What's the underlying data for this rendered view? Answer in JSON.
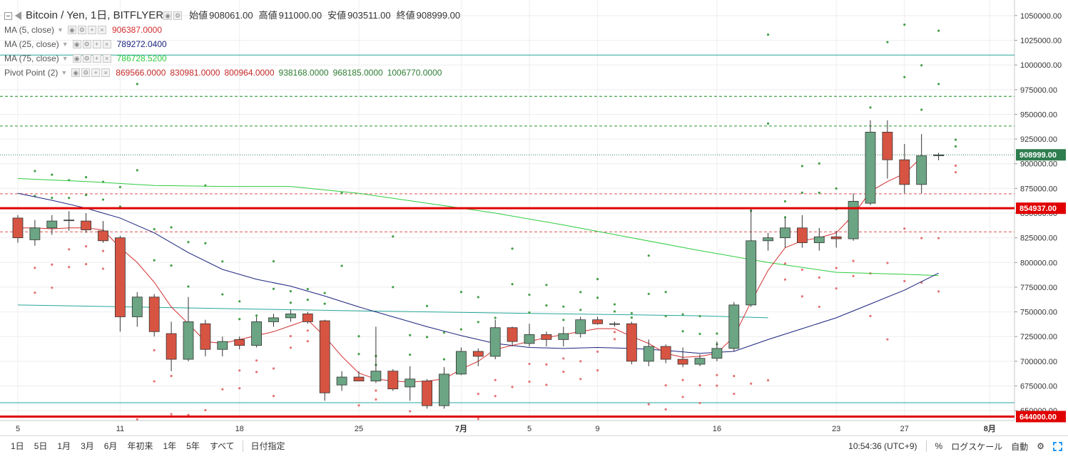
{
  "header": {
    "symbol": "Bitcoin / Yen, 1日, BITFLYER",
    "open_label": "始値",
    "open": "908061.00",
    "high_label": "高値",
    "high": "911000.00",
    "low_label": "安値",
    "low": "903511.00",
    "close_label": "終値",
    "close": "908999.00"
  },
  "indicators": [
    {
      "name": "MA (5, close)",
      "values": [
        "906387.0000"
      ],
      "colors": [
        "#d32f2f"
      ]
    },
    {
      "name": "MA (25, close)",
      "values": [
        "789272.0400"
      ],
      "colors": [
        "#1a237e"
      ]
    },
    {
      "name": "MA (75, close)",
      "values": [
        "786728.5200"
      ],
      "colors": [
        "#2ecc40"
      ]
    },
    {
      "name": "Pivot Point (2)",
      "values": [
        "869566.0000",
        "830981.0000",
        "800964.0000",
        "938168.0000",
        "968185.0000",
        "1006770.0000"
      ],
      "colors": [
        "#c62828",
        "#c62828",
        "#c62828",
        "#2e7d32",
        "#2e7d32",
        "#2e7d32"
      ]
    }
  ],
  "price_axis": {
    "labels": [
      "1050000.00",
      "1025000.00",
      "1000000.00",
      "975000.00",
      "950000.00",
      "925000.00",
      "900000.00",
      "875000.00",
      "850000.00",
      "825000.00",
      "800000.00",
      "775000.00",
      "750000.00",
      "725000.00",
      "700000.00",
      "675000.00",
      "650000.00"
    ],
    "current_price": "908999.00",
    "level_1": "854937.00",
    "level_2": "644000.00"
  },
  "time_axis": {
    "labels": [
      {
        "text": "5",
        "i": 0
      },
      {
        "text": "11",
        "i": 6
      },
      {
        "text": "18",
        "i": 13
      },
      {
        "text": "25",
        "i": 20
      },
      {
        "text": "7月",
        "i": 26
      },
      {
        "text": "5",
        "i": 30
      },
      {
        "text": "9",
        "i": 34
      },
      {
        "text": "16",
        "i": 41
      },
      {
        "text": "23",
        "i": 48
      },
      {
        "text": "27",
        "i": 52
      },
      {
        "text": "8月",
        "i": 57
      }
    ]
  },
  "toolbar": {
    "timeframes": [
      "1日",
      "5日",
      "1月",
      "3月",
      "6月",
      "年初来",
      "1年",
      "5年",
      "すべて"
    ],
    "date_range": "日付指定",
    "time": "10:54:36 (UTC+9)",
    "percent": "%",
    "log_scale": "ログスケール",
    "auto": "自動"
  },
  "colors": {
    "up": "#6ba583",
    "down": "#d75442",
    "ma5": "#d32f2f",
    "ma25": "#1a237e",
    "ma75": "#2ecc40",
    "pivot_support": "#e57373",
    "pivot_resist": "#43a047",
    "level": "#e00000",
    "current": "#2e7d4f"
  },
  "icons": [
    "collapse-box-icon",
    "flag-icon",
    "eye-icon",
    "gear-icon",
    "plus-icon",
    "close-icon",
    "fullscreen-icon"
  ],
  "chart_data": {
    "type": "candlestick",
    "title": "Bitcoin / Yen, 1日, BITFLYER",
    "ylim": [
      640000,
      1060000
    ],
    "candles": [
      [
        845000,
        848000,
        820000,
        825000
      ],
      [
        823000,
        843000,
        817000,
        835000
      ],
      [
        835000,
        848000,
        828000,
        842000
      ],
      [
        843000,
        852000,
        832000,
        843000
      ],
      [
        842000,
        850000,
        830000,
        833000
      ],
      [
        832000,
        842000,
        820000,
        822000
      ],
      [
        825000,
        827000,
        730000,
        745000
      ],
      [
        745000,
        770000,
        735000,
        765000
      ],
      [
        765000,
        768000,
        725000,
        730000
      ],
      [
        728000,
        740000,
        690000,
        702000
      ],
      [
        702000,
        765000,
        700000,
        740000
      ],
      [
        738000,
        742000,
        705000,
        712000
      ],
      [
        712000,
        725000,
        705000,
        720000
      ],
      [
        722000,
        725000,
        712000,
        716000
      ],
      [
        716000,
        745000,
        714000,
        740000
      ],
      [
        740000,
        748000,
        735000,
        744000
      ],
      [
        744000,
        752000,
        740000,
        748000
      ],
      [
        748000,
        750000,
        738000,
        740000
      ],
      [
        741000,
        742000,
        660000,
        668000
      ],
      [
        676000,
        690000,
        670000,
        684000
      ],
      [
        684000,
        690000,
        680000,
        680000
      ],
      [
        680000,
        735000,
        678000,
        690000
      ],
      [
        690000,
        692000,
        670000,
        672000
      ],
      [
        674000,
        695000,
        660000,
        682000
      ],
      [
        680000,
        682000,
        652000,
        655000
      ],
      [
        655000,
        694000,
        652000,
        687000
      ],
      [
        687000,
        714000,
        686000,
        710000
      ],
      [
        710000,
        713000,
        695000,
        705000
      ],
      [
        705000,
        742000,
        702000,
        734000
      ],
      [
        734000,
        735000,
        715000,
        720000
      ],
      [
        718000,
        738000,
        715000,
        727000
      ],
      [
        727000,
        730000,
        715000,
        722000
      ],
      [
        722000,
        735000,
        715000,
        728000
      ],
      [
        728000,
        745000,
        724000,
        742000
      ],
      [
        742000,
        745000,
        737000,
        738000
      ],
      [
        738000,
        740000,
        735000,
        738000
      ],
      [
        738000,
        740000,
        697000,
        700000
      ],
      [
        700000,
        722000,
        695000,
        715000
      ],
      [
        715000,
        717000,
        698000,
        702000
      ],
      [
        702000,
        714000,
        694000,
        697000
      ],
      [
        697000,
        707000,
        695000,
        703000
      ],
      [
        703000,
        720000,
        700000,
        713000
      ],
      [
        713000,
        760000,
        710000,
        757000
      ],
      [
        757000,
        855000,
        755000,
        822000
      ],
      [
        822000,
        830000,
        812000,
        825000
      ],
      [
        825000,
        845000,
        815000,
        835000
      ],
      [
        835000,
        848000,
        815000,
        820000
      ],
      [
        820000,
        835000,
        812000,
        826000
      ],
      [
        826000,
        832000,
        815000,
        824000
      ],
      [
        824000,
        870000,
        822000,
        862000
      ],
      [
        860000,
        944000,
        858000,
        932000
      ],
      [
        932000,
        944000,
        885000,
        904000
      ],
      [
        904000,
        920000,
        870000,
        879000
      ],
      [
        879000,
        930000,
        870000,
        908000
      ],
      [
        908061,
        911000,
        903511,
        908999
      ]
    ],
    "ma5": [
      [
        0,
        835000
      ],
      [
        1,
        835000
      ],
      [
        2,
        834000
      ],
      [
        3,
        835000
      ],
      [
        4,
        835000
      ],
      [
        5,
        833000
      ],
      [
        6,
        815000
      ],
      [
        7,
        800000
      ],
      [
        8,
        780000
      ],
      [
        9,
        755000
      ],
      [
        10,
        738000
      ],
      [
        11,
        720000
      ],
      [
        12,
        718000
      ],
      [
        13,
        722000
      ],
      [
        14,
        726000
      ],
      [
        15,
        730000
      ],
      [
        16,
        736000
      ],
      [
        17,
        742000
      ],
      [
        18,
        725000
      ],
      [
        19,
        705000
      ],
      [
        20,
        688000
      ],
      [
        21,
        682000
      ],
      [
        22,
        680000
      ],
      [
        23,
        679000
      ],
      [
        24,
        680000
      ],
      [
        25,
        682000
      ],
      [
        26,
        692000
      ],
      [
        27,
        700000
      ],
      [
        28,
        712000
      ],
      [
        29,
        716000
      ],
      [
        30,
        720000
      ],
      [
        31,
        724000
      ],
      [
        32,
        727000
      ],
      [
        33,
        730000
      ],
      [
        34,
        733000
      ],
      [
        35,
        733000
      ],
      [
        36,
        725000
      ],
      [
        37,
        718000
      ],
      [
        38,
        708000
      ],
      [
        39,
        704000
      ],
      [
        40,
        705000
      ],
      [
        41,
        708000
      ],
      [
        42,
        725000
      ],
      [
        43,
        760000
      ],
      [
        44,
        792000
      ],
      [
        45,
        815000
      ],
      [
        46,
        822000
      ],
      [
        47,
        825000
      ],
      [
        48,
        830000
      ],
      [
        49,
        848000
      ],
      [
        50,
        872000
      ],
      [
        51,
        882000
      ],
      [
        52,
        890000
      ],
      [
        53,
        906387
      ]
    ],
    "ma25": [
      [
        0,
        870000
      ],
      [
        2,
        863000
      ],
      [
        4,
        855000
      ],
      [
        6,
        845000
      ],
      [
        8,
        830000
      ],
      [
        10,
        810000
      ],
      [
        12,
        793000
      ],
      [
        14,
        783000
      ],
      [
        16,
        776000
      ],
      [
        18,
        766000
      ],
      [
        20,
        755000
      ],
      [
        22,
        745000
      ],
      [
        24,
        735000
      ],
      [
        26,
        726000
      ],
      [
        28,
        718000
      ],
      [
        30,
        714000
      ],
      [
        32,
        713000
      ],
      [
        34,
        714000
      ],
      [
        36,
        713000
      ],
      [
        38,
        711000
      ],
      [
        40,
        708000
      ],
      [
        42,
        710000
      ],
      [
        44,
        722000
      ],
      [
        46,
        733000
      ],
      [
        48,
        744000
      ],
      [
        50,
        758000
      ],
      [
        52,
        772000
      ],
      [
        54,
        789272
      ]
    ],
    "ma75": [
      [
        0,
        885000
      ],
      [
        4,
        882000
      ],
      [
        8,
        878000
      ],
      [
        12,
        877000
      ],
      [
        16,
        877000
      ],
      [
        20,
        870000
      ],
      [
        24,
        860000
      ],
      [
        28,
        850000
      ],
      [
        32,
        838000
      ],
      [
        36,
        825000
      ],
      [
        40,
        812000
      ],
      [
        44,
        800000
      ],
      [
        48,
        790000
      ],
      [
        52,
        788000
      ],
      [
        54,
        786728
      ]
    ],
    "teal_line": [
      [
        0,
        757000
      ],
      [
        20,
        751000
      ],
      [
        40,
        746000
      ],
      [
        44,
        744000
      ]
    ],
    "pivot_levels": {
      "S1": 869566,
      "S2": 830981,
      "S3": 800964,
      "R1": 938168,
      "R2": 968185,
      "R3": 1006770
    },
    "horizontal_levels": [
      854937,
      644000,
      1010000,
      908999,
      658000
    ]
  }
}
